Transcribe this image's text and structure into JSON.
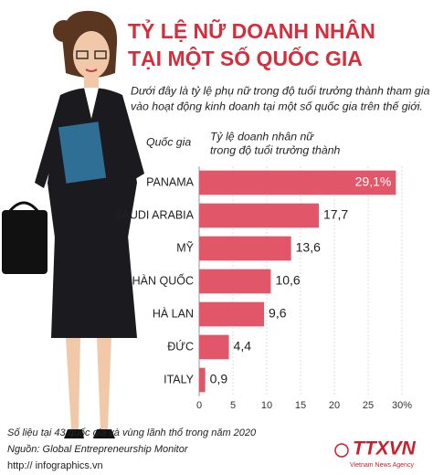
{
  "chart_data": {
    "type": "bar",
    "orientation": "horizontal",
    "title_lines": [
      "TỶ LỆ NỮ DOANH NHÂN",
      "TẠI MỘT SỐ QUỐC GIA"
    ],
    "description_lines": [
      "Dưới đây là tỷ lệ phụ nữ trong độ tuổi trưởng thành tham gia",
      "vào hoạt động kinh doanh tại một số quốc gia trên thế giới."
    ],
    "ylabel": "Quốc gia",
    "xlabel": [
      "Tỷ lệ doanh nhân nữ",
      "trong độ tuổi trưởng thành"
    ],
    "categories": [
      "PANAMA",
      "SAUDI ARABIA",
      "MỸ",
      "HÀN QUỐC",
      "HÀ LAN",
      "ĐỨC",
      "ITALY"
    ],
    "values": [
      29.1,
      17.7,
      13.6,
      10.6,
      9.6,
      4.4,
      0.9
    ],
    "value_labels": [
      "29,1%",
      "17,7",
      "13,6",
      "10,6",
      "9,6",
      "4,4",
      "0,9"
    ],
    "color": "#e2566a",
    "xlim": [
      0,
      30
    ],
    "xticks": [
      0,
      5,
      10,
      15,
      20,
      25,
      {
        "value": 30,
        "label": "30%"
      }
    ],
    "grid": true
  },
  "footer": {
    "note": "Số liệu tại 43 quốc gia và vùng lãnh thổ trong năm 2020",
    "source": "Nguồn: Global Entrepreneurship Monitor",
    "url": "http:// infographics.vn",
    "logo": "TTXVN",
    "logo_subtitle": "Vietnam News Agency"
  }
}
